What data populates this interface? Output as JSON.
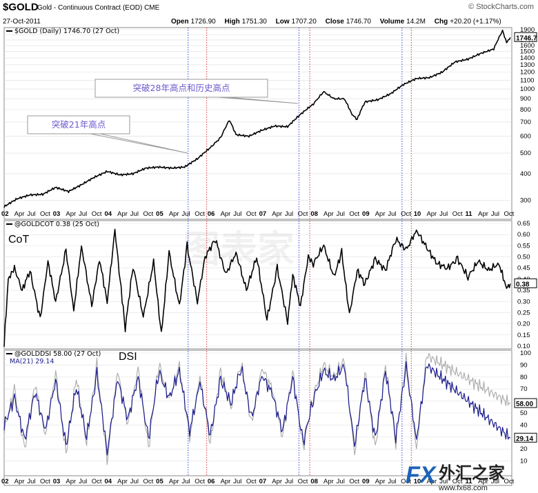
{
  "header": {
    "symbol": "$GOLD",
    "name": "Gold - Continuous Contract (EOD)",
    "exchange": "CME",
    "brand": "© StockCharts.com",
    "date": "27-Oct-2011",
    "open_label": "Open",
    "open": "1726.90",
    "high_label": "High",
    "high": "1751.30",
    "low_label": "Low",
    "low": "1707.20",
    "close_label": "Close",
    "close": "1746.70",
    "volume_label": "Volume",
    "volume": "14.2M",
    "chg_label": "Chg",
    "chg": "+20.20 (+1.17%)"
  },
  "colors": {
    "price": "#000000",
    "dsi_raw": "#999999",
    "dsi_ma": "#1a1a8c",
    "blue_line": "#3344dd",
    "red_line": "#dd3333",
    "callout": "#6a5acd"
  },
  "watermark": {
    "logo_text": "FX外汇之家",
    "url_text": "www.fx68.com",
    "faint_text": "图表家"
  },
  "chart_data": [
    {
      "panel": "price",
      "type": "line",
      "legend": "$GOLD (Daily) 1746.70 (27 Oct)",
      "scale": "log",
      "ylim": [
        250,
        1900
      ],
      "yticks": [
        300,
        400,
        500,
        600,
        700,
        800,
        900,
        1000,
        1100,
        1200,
        1300,
        1400,
        1500,
        1600,
        1700,
        1800,
        1900
      ],
      "last_value_label": "1746.7",
      "x": [
        2002.0,
        2002.25,
        2002.5,
        2002.75,
        2003.0,
        2003.25,
        2003.5,
        2003.75,
        2004.0,
        2004.25,
        2004.5,
        2004.75,
        2005.0,
        2005.25,
        2005.5,
        2005.75,
        2006.0,
        2006.2,
        2006.37,
        2006.5,
        2006.75,
        2007.0,
        2007.25,
        2007.5,
        2007.75,
        2008.0,
        2008.2,
        2008.4,
        2008.6,
        2008.75,
        2008.85,
        2009.0,
        2009.25,
        2009.5,
        2009.75,
        2010.0,
        2010.25,
        2010.5,
        2010.75,
        2011.0,
        2011.25,
        2011.5,
        2011.67,
        2011.75,
        2011.82
      ],
      "y": [
        280,
        305,
        318,
        320,
        345,
        330,
        355,
        385,
        410,
        395,
        400,
        425,
        430,
        425,
        430,
        470,
        530,
        590,
        715,
        610,
        600,
        640,
        670,
        665,
        760,
        850,
        970,
        900,
        900,
        760,
        720,
        870,
        890,
        950,
        1050,
        1120,
        1130,
        1200,
        1340,
        1380,
        1470,
        1540,
        1880,
        1650,
        1746.7
      ],
      "annotations": [
        "突破21年高点",
        "突破28年高点和历史高点"
      ]
    },
    {
      "panel": "cot",
      "type": "line",
      "legend": "@GOLDCOT 0.38 (25 Oct)",
      "label": "CoT",
      "ylim": [
        0.1,
        0.65
      ],
      "yticks": [
        0.1,
        0.15,
        0.2,
        0.25,
        0.3,
        0.35,
        0.4,
        0.45,
        0.5,
        0.55,
        0.6,
        0.65
      ],
      "last_value_label": "0.38",
      "x": [
        2002.0,
        2002.08,
        2002.2,
        2002.35,
        2002.5,
        2002.7,
        2002.85,
        2003.0,
        2003.2,
        2003.35,
        2003.5,
        2003.7,
        2003.85,
        2004.0,
        2004.15,
        2004.25,
        2004.35,
        2004.5,
        2004.7,
        2004.9,
        2005.05,
        2005.2,
        2005.4,
        2005.55,
        2005.75,
        2005.9,
        2006.1,
        2006.3,
        2006.5,
        2006.7,
        2006.9,
        2007.1,
        2007.3,
        2007.5,
        2007.6,
        2007.75,
        2007.9,
        2008.0,
        2008.2,
        2008.4,
        2008.55,
        2008.7,
        2008.85,
        2009.0,
        2009.2,
        2009.4,
        2009.6,
        2009.8,
        2010.0,
        2010.2,
        2010.4,
        2010.6,
        2010.8,
        2011.0,
        2011.2,
        2011.4,
        2011.6,
        2011.75,
        2011.82
      ],
      "y": [
        0.11,
        0.4,
        0.45,
        0.35,
        0.44,
        0.22,
        0.48,
        0.3,
        0.53,
        0.26,
        0.55,
        0.28,
        0.49,
        0.3,
        0.62,
        0.4,
        0.18,
        0.46,
        0.23,
        0.48,
        0.15,
        0.52,
        0.28,
        0.55,
        0.3,
        0.5,
        0.58,
        0.42,
        0.52,
        0.35,
        0.5,
        0.22,
        0.45,
        0.21,
        0.42,
        0.28,
        0.5,
        0.47,
        0.55,
        0.41,
        0.52,
        0.24,
        0.44,
        0.38,
        0.49,
        0.44,
        0.58,
        0.53,
        0.62,
        0.54,
        0.47,
        0.45,
        0.49,
        0.41,
        0.48,
        0.44,
        0.47,
        0.36,
        0.38
      ]
    },
    {
      "panel": "dsi",
      "type": "line",
      "legend": "@GOLDDSI 58.00 (27 Oct)",
      "legend2": "MA(21) 29.14",
      "label": "DSI",
      "ylim": [
        0,
        100
      ],
      "yticks": [
        10,
        20,
        30,
        40,
        50,
        60,
        70,
        80,
        90,
        100
      ],
      "last_value_labels": [
        "58.00",
        "29.14"
      ],
      "series": [
        {
          "name": "@GOLDDSI",
          "values": [
            35,
            70,
            20,
            75,
            30,
            85,
            15,
            80,
            25,
            90,
            10,
            85,
            40,
            88,
            20,
            92,
            60,
            90,
            30,
            80,
            25,
            85,
            55,
            92,
            40,
            88,
            70,
            30,
            85,
            20,
            65,
            90,
            80,
            95,
            15,
            85,
            20,
            90,
            25,
            95,
            20,
            98,
            58
          ]
        },
        {
          "name": "MA(21)",
          "values": [
            40,
            62,
            28,
            68,
            35,
            78,
            22,
            72,
            30,
            82,
            18,
            78,
            45,
            80,
            28,
            85,
            62,
            85,
            35,
            75,
            32,
            78,
            58,
            88,
            45,
            82,
            66,
            35,
            80,
            25,
            62,
            85,
            78,
            90,
            22,
            80,
            28,
            85,
            30,
            88,
            28,
            90,
            29.14
          ]
        }
      ],
      "x": [
        2002.0,
        2002.2,
        2002.4,
        2002.6,
        2002.8,
        2003.0,
        2003.2,
        2003.4,
        2003.6,
        2003.8,
        2004.0,
        2004.2,
        2004.4,
        2004.6,
        2004.8,
        2005.0,
        2005.2,
        2005.4,
        2005.6,
        2005.8,
        2006.0,
        2006.2,
        2006.4,
        2006.6,
        2006.8,
        2007.0,
        2007.2,
        2007.4,
        2007.6,
        2007.8,
        2008.0,
        2008.2,
        2008.4,
        2008.6,
        2008.8,
        2009.0,
        2009.2,
        2009.4,
        2009.6,
        2009.8,
        2010.0,
        2010.2,
        2011.82
      ]
    }
  ],
  "x_axis": {
    "labels": [
      "02",
      "Apr",
      "Jul",
      "Oct",
      "03",
      "Apr",
      "Jul",
      "Oct",
      "04",
      "Apr",
      "Jul",
      "Oct",
      "05",
      "Apr",
      "Jul",
      "Oct",
      "06",
      "Apr",
      "Jul",
      "Oct",
      "07",
      "Apr",
      "Jul",
      "Oct",
      "08",
      "Apr",
      "Jul",
      "Oct",
      "09",
      "Apr",
      "Jul",
      "Oct",
      "10",
      "Apr",
      "Jul",
      "Oct",
      "11",
      "Apr",
      "Jul",
      "Oct"
    ]
  },
  "vlines": [
    {
      "color": "blue",
      "x": 2005.57
    },
    {
      "color": "red",
      "x": 2005.93
    },
    {
      "color": "blue",
      "x": 2007.72
    },
    {
      "color": "red",
      "x": 2007.93
    },
    {
      "color": "blue",
      "x": 2009.72
    },
    {
      "color": "red",
      "x": 2009.9
    }
  ]
}
